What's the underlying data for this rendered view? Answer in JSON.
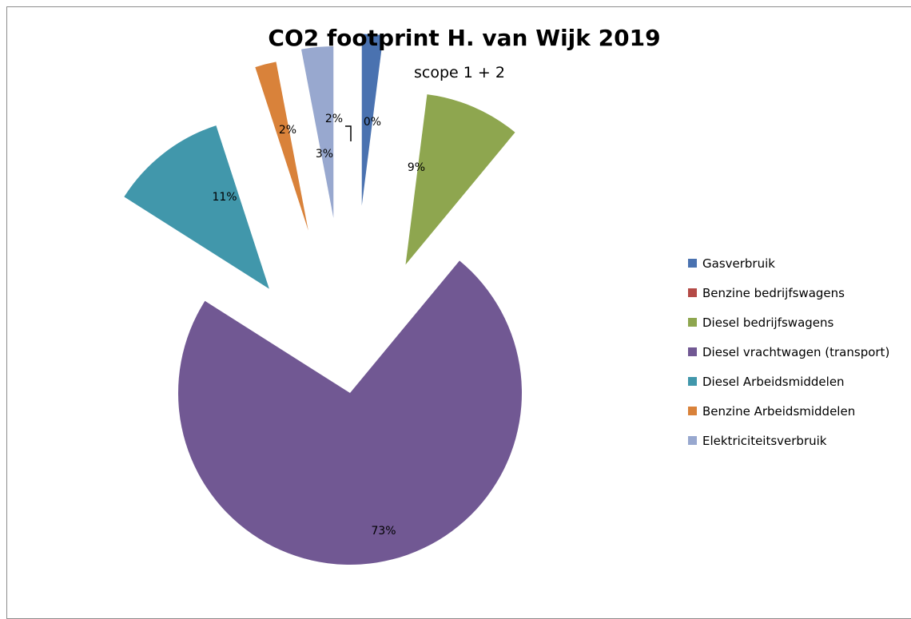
{
  "chart_data": {
    "type": "pie",
    "title": "CO2 footprint H. van Wijk 2019",
    "subtitle": "scope 1 + 2",
    "categories": [
      "Gasverbruik",
      "Benzine bedrijfswagens",
      "Diesel bedrijfswagens",
      "Diesel vrachtwagen (transport)",
      "Diesel  Arbeidsmiddelen",
      "Benzine Arbeidsmiddelen",
      "Elektriciteitsverbruik"
    ],
    "values": [
      2,
      0,
      9,
      73,
      11,
      2,
      3
    ],
    "labels": [
      "2%",
      "0%",
      "9%",
      "73%",
      "11%",
      "2%",
      "3%"
    ],
    "colors": [
      "#4a72b0",
      "#b44a46",
      "#8ea64f",
      "#715893",
      "#4197ab",
      "#d9823a",
      "#98a8cf"
    ],
    "legend_position": "right"
  }
}
